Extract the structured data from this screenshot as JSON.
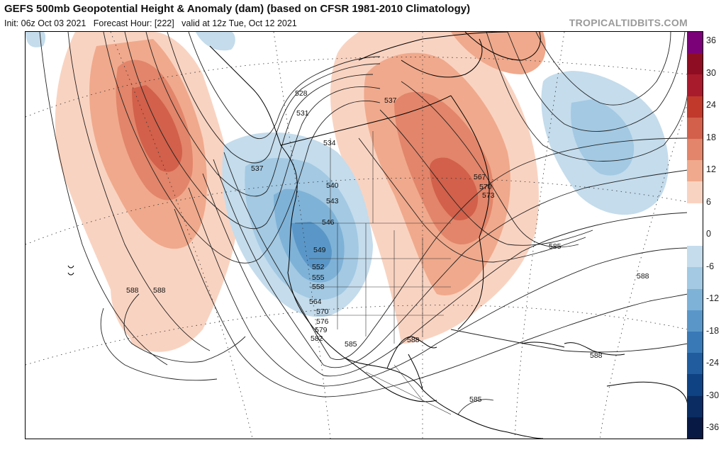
{
  "header": {
    "title": "GEFS 500mb Geopotential Height & Anomaly (dam) (based on CFSR 1981-2010 Climatology)",
    "init": "Init: 06z Oct 03 2021",
    "forecast_hour": "Forecast Hour: [222]",
    "valid": "valid at 12z Tue, Oct 12 2021",
    "source": "TROPICALTIDBITS.COM"
  },
  "colorbar": {
    "labels": [
      "36",
      "30",
      "24",
      "18",
      "12",
      "6",
      "0",
      "-6",
      "-12",
      "-18",
      "-24",
      "-30",
      "-36"
    ],
    "colors": [
      "#7a0177",
      "#8e0d22",
      "#a81b2c",
      "#c0392b",
      "#d2604a",
      "#e2856a",
      "#f0a98c",
      "#f9d3c1",
      "#ffffff",
      "#ffffff",
      "#c4dcec",
      "#a3c9e3",
      "#7fb2d7",
      "#5a97c8",
      "#3979b6",
      "#215d9e",
      "#0f4282",
      "#0a2c63",
      "#081a44"
    ]
  },
  "map_labels": {
    "contour_values": [
      "528",
      "531",
      "534",
      "537",
      "540",
      "543",
      "546",
      "549",
      "552",
      "555",
      "558",
      "564",
      "570",
      "576",
      "579",
      "582",
      "585",
      "588",
      "567",
      "570",
      "573",
      "585",
      "588",
      "588",
      "588",
      "588",
      "585",
      "537"
    ]
  }
}
